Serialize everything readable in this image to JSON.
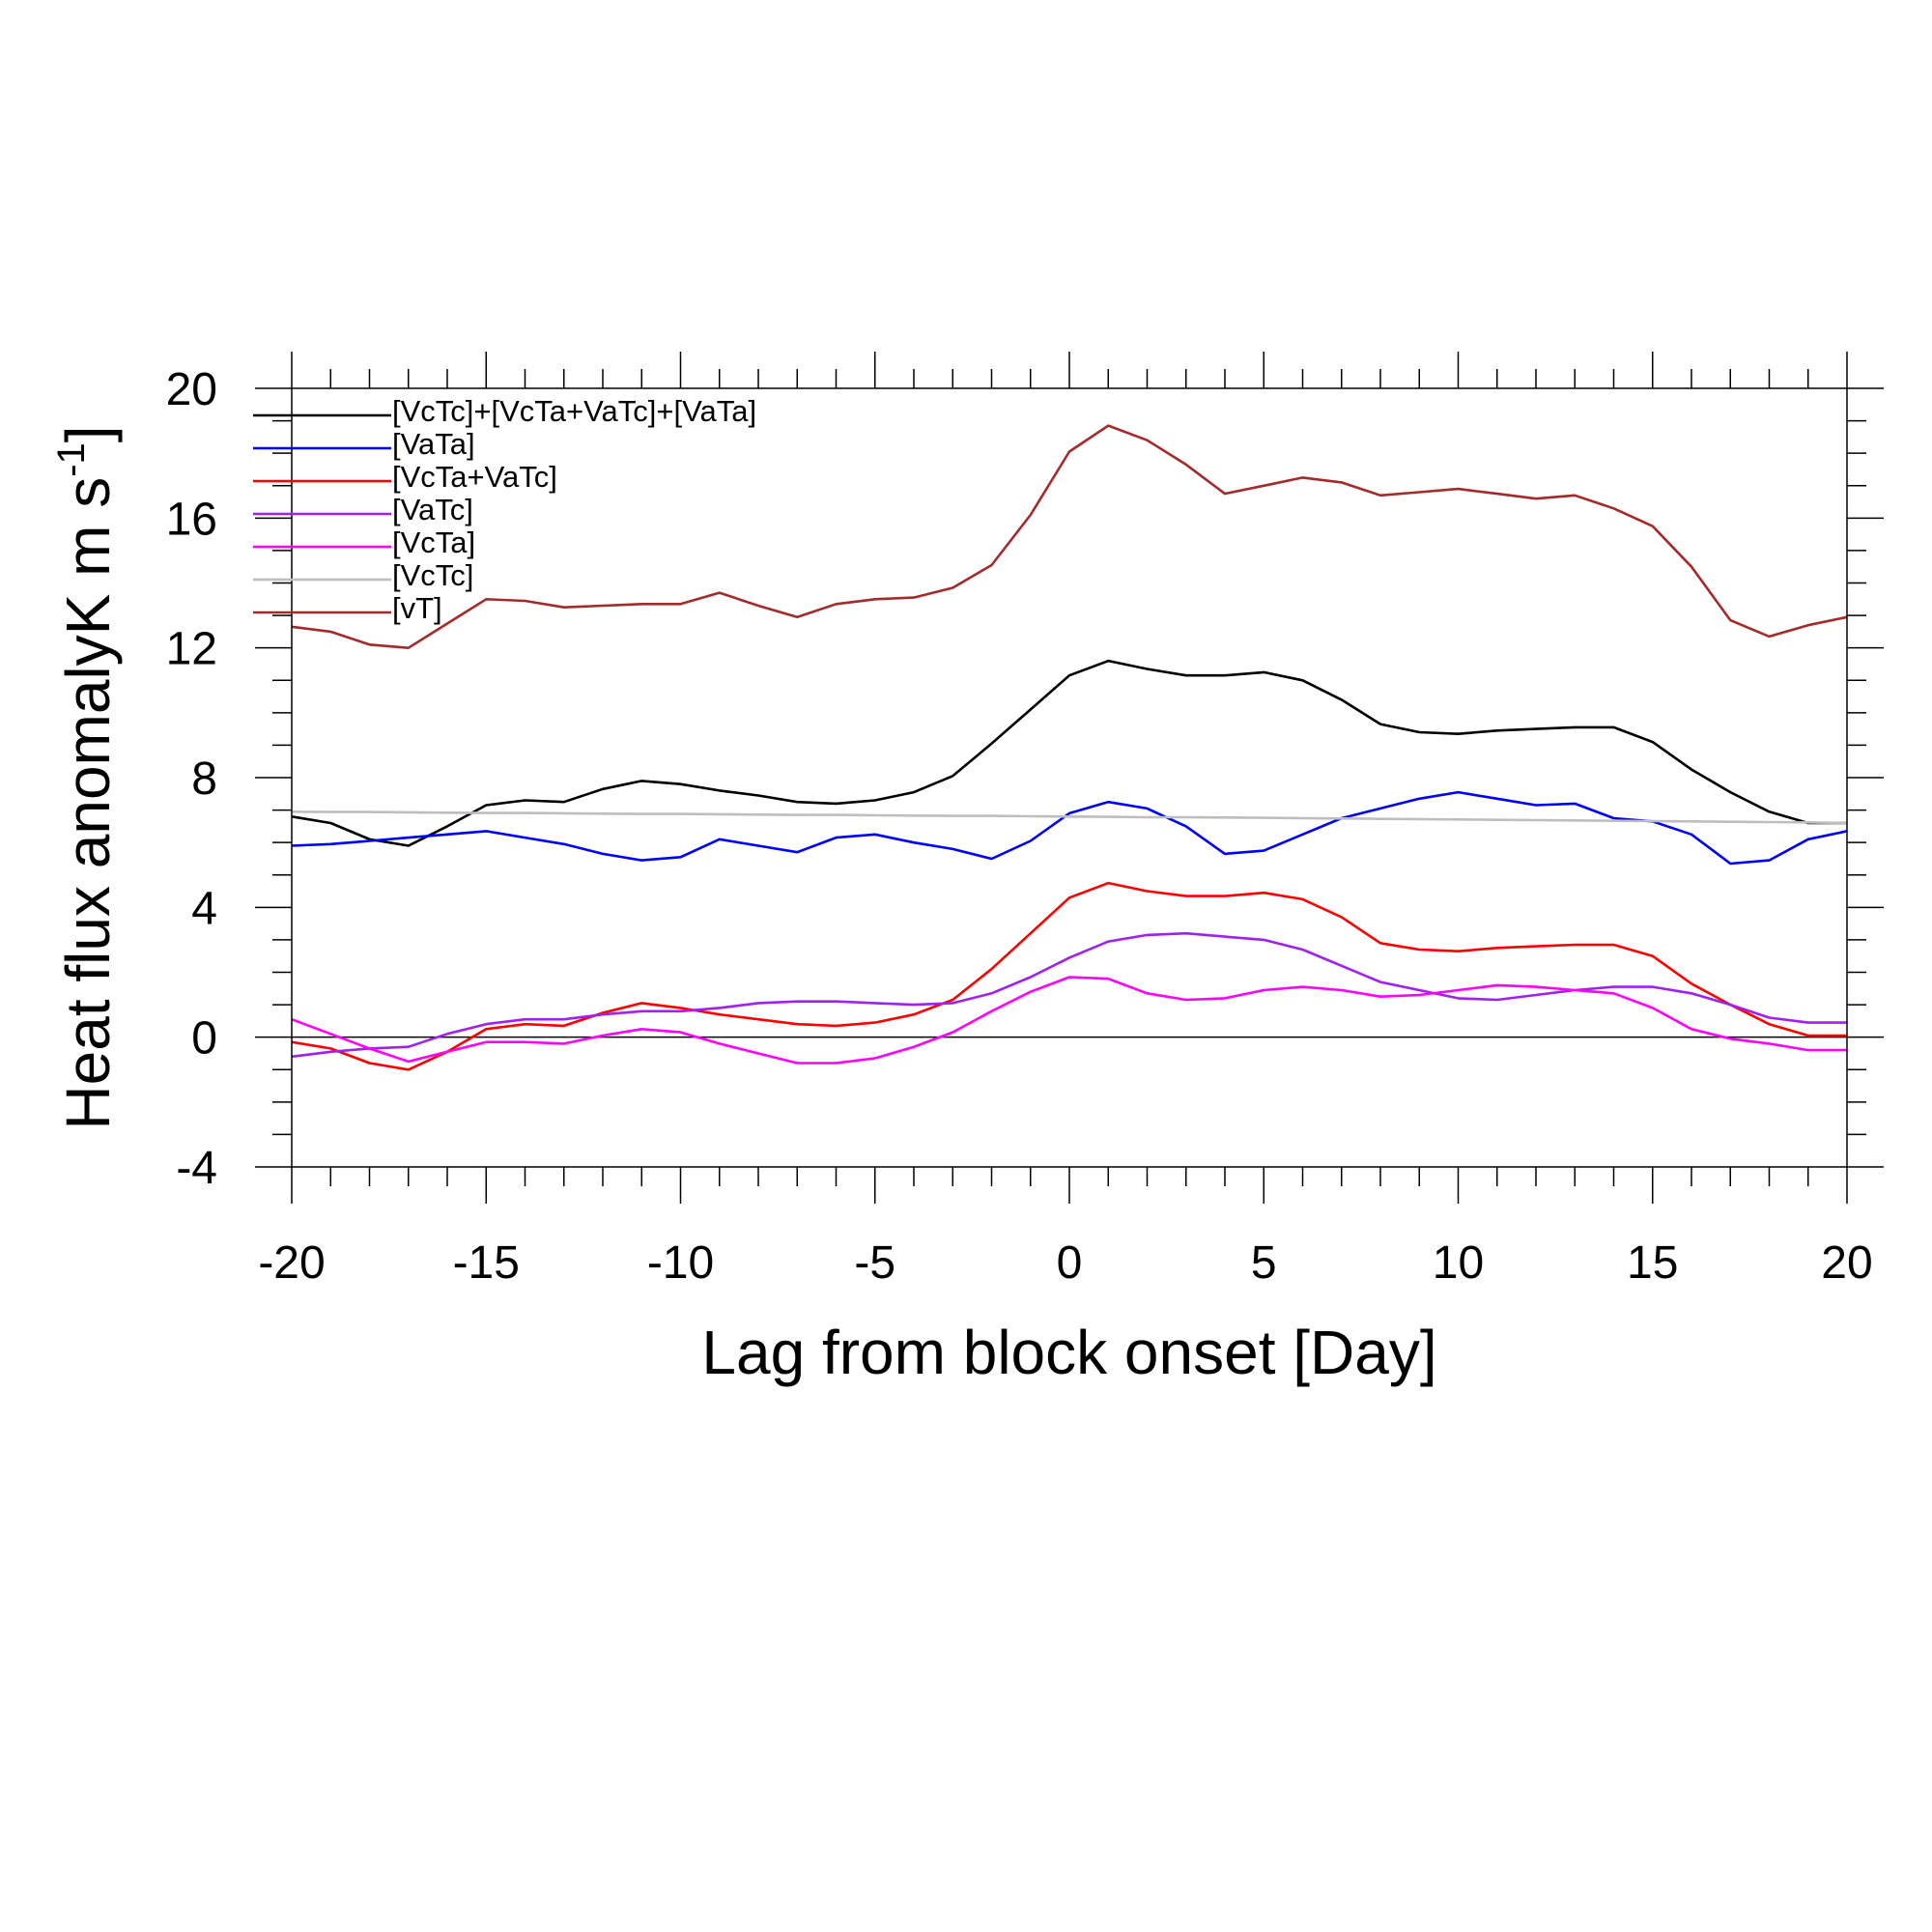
{
  "chart_data": {
    "type": "line",
    "title": "",
    "xlabel": "Lag from block onset [Day]",
    "ylabel": {
      "main": "Heat flux anomalyK m s",
      "sup": "-1",
      "close": "]"
    },
    "xlim": [
      -20,
      20
    ],
    "ylim": [
      -4,
      20
    ],
    "xticks": [
      -20,
      -15,
      -10,
      -5,
      0,
      5,
      10,
      15,
      20
    ],
    "xtick_labels": [
      "-20",
      "-15",
      "-10",
      "-5",
      "0",
      "5",
      "10",
      "15",
      "20"
    ],
    "yticks": [
      -4,
      0,
      4,
      8,
      12,
      16,
      20
    ],
    "ytick_labels": [
      "-4",
      "0",
      "4",
      "8",
      "12",
      "16",
      "20"
    ],
    "legend_position": "top-left",
    "zero_line": true,
    "x": [
      -20,
      -19,
      -18,
      -17,
      -16,
      -15,
      -14,
      -13,
      -12,
      -11,
      -10,
      -9,
      -8,
      -7,
      -6,
      -5,
      -4,
      -3,
      -2,
      -1,
      0,
      1,
      2,
      3,
      4,
      5,
      6,
      7,
      8,
      9,
      10,
      11,
      12,
      13,
      14,
      15,
      16,
      17,
      18,
      19,
      20
    ],
    "series": [
      {
        "name": "[VcTc]+[VcTa+VaTc]+[VaTa]",
        "color": "#000000",
        "values": [
          6.8,
          6.6,
          6.1,
          5.9,
          6.5,
          7.15,
          7.3,
          7.25,
          7.65,
          7.9,
          7.8,
          7.6,
          7.45,
          7.25,
          7.2,
          7.3,
          7.55,
          8.05,
          9.05,
          10.1,
          11.15,
          11.6,
          11.35,
          11.15,
          11.15,
          11.25,
          11.0,
          10.4,
          9.65,
          9.4,
          9.35,
          9.45,
          9.5,
          9.55,
          9.55,
          9.1,
          8.25,
          7.55,
          6.95,
          6.6,
          6.6
        ]
      },
      {
        "name": "[VaTa]",
        "color": "#0000ff",
        "values": [
          5.9,
          5.95,
          6.05,
          6.15,
          6.25,
          6.35,
          6.15,
          5.95,
          5.65,
          5.45,
          5.55,
          6.1,
          5.9,
          5.7,
          6.15,
          6.25,
          6.0,
          5.8,
          5.5,
          6.05,
          6.9,
          7.25,
          7.05,
          6.5,
          5.65,
          5.75,
          6.25,
          6.75,
          7.05,
          7.35,
          7.55,
          7.35,
          7.15,
          7.2,
          6.75,
          6.65,
          6.25,
          5.35,
          5.45,
          6.1,
          6.35
        ]
      },
      {
        "name": "[VcTa+VaTc]",
        "color": "#ff0000",
        "values": [
          -0.15,
          -0.35,
          -0.8,
          -1.0,
          -0.45,
          0.25,
          0.4,
          0.35,
          0.75,
          1.05,
          0.9,
          0.7,
          0.55,
          0.4,
          0.35,
          0.45,
          0.7,
          1.15,
          2.1,
          3.2,
          4.3,
          4.75,
          4.5,
          4.35,
          4.35,
          4.45,
          4.25,
          3.7,
          2.9,
          2.7,
          2.65,
          2.75,
          2.8,
          2.85,
          2.85,
          2.5,
          1.65,
          1.0,
          0.4,
          0.05,
          0.05
        ]
      },
      {
        "name": "[VaTc]",
        "color": "#a020f0",
        "values": [
          -0.6,
          -0.45,
          -0.35,
          -0.3,
          0.1,
          0.4,
          0.55,
          0.55,
          0.7,
          0.8,
          0.8,
          0.9,
          1.05,
          1.1,
          1.1,
          1.05,
          1.0,
          1.05,
          1.35,
          1.85,
          2.45,
          2.95,
          3.15,
          3.2,
          3.1,
          3.0,
          2.7,
          2.2,
          1.7,
          1.45,
          1.2,
          1.15,
          1.3,
          1.45,
          1.55,
          1.55,
          1.35,
          1.0,
          0.6,
          0.45,
          0.45
        ]
      },
      {
        "name": "[VcTa]",
        "color": "#ff00ff",
        "values": [
          0.55,
          0.1,
          -0.35,
          -0.75,
          -0.45,
          -0.15,
          -0.15,
          -0.2,
          0.05,
          0.25,
          0.15,
          -0.2,
          -0.5,
          -0.8,
          -0.8,
          -0.65,
          -0.3,
          0.15,
          0.8,
          1.4,
          1.85,
          1.8,
          1.35,
          1.15,
          1.2,
          1.45,
          1.55,
          1.45,
          1.25,
          1.3,
          1.45,
          1.6,
          1.55,
          1.45,
          1.35,
          0.9,
          0.25,
          -0.05,
          -0.2,
          -0.4,
          -0.4
        ]
      },
      {
        "name": "[VcTc]",
        "color": "#bebebe",
        "values": [
          6.95,
          6.94,
          6.94,
          6.93,
          6.92,
          6.91,
          6.91,
          6.9,
          6.89,
          6.88,
          6.88,
          6.87,
          6.86,
          6.85,
          6.85,
          6.84,
          6.83,
          6.82,
          6.82,
          6.81,
          6.8,
          6.79,
          6.78,
          6.78,
          6.77,
          6.76,
          6.75,
          6.74,
          6.73,
          6.72,
          6.71,
          6.7,
          6.69,
          6.68,
          6.67,
          6.66,
          6.65,
          6.64,
          6.63,
          6.62,
          6.6
        ]
      },
      {
        "name": "[vT]",
        "color": "#a52a2a",
        "values": [
          12.65,
          12.5,
          12.1,
          12.0,
          12.75,
          13.5,
          13.45,
          13.25,
          13.3,
          13.35,
          13.35,
          13.7,
          13.3,
          12.95,
          13.35,
          13.5,
          13.55,
          13.85,
          14.55,
          16.1,
          18.05,
          18.85,
          18.4,
          17.65,
          16.75,
          17.0,
          17.25,
          17.1,
          16.7,
          16.8,
          16.9,
          16.75,
          16.6,
          16.7,
          16.3,
          15.75,
          14.5,
          12.85,
          12.35,
          12.7,
          12.95
        ]
      }
    ]
  }
}
